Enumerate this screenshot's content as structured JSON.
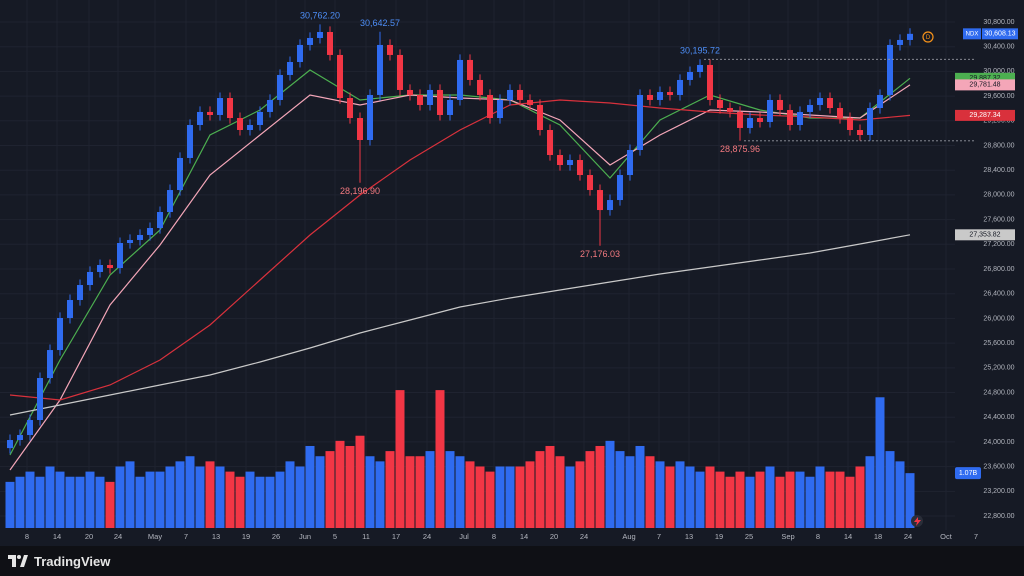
{
  "chart_data": {
    "type": "candlestick",
    "symbol": "NDX",
    "interval_badge": "D",
    "open": [
      23900,
      24031,
      24112,
      24355,
      25035,
      25488,
      26007,
      26298,
      26541,
      26752,
      26865,
      26816,
      27221,
      27270,
      27351,
      27464,
      27723,
      28079,
      28598,
      29132,
      29343,
      29294,
      29569,
      29245,
      29051,
      29132,
      29343,
      29537,
      29942,
      30152,
      30428,
      30541,
      30638,
      30266,
      29569,
      29245,
      28889,
      29618,
      30428,
      30266,
      29699,
      29618,
      29456,
      29699,
      29294,
      29537,
      30185,
      29861,
      29618,
      29245,
      29537,
      29699,
      29537,
      29456,
      29051,
      28646,
      28484,
      28565,
      28322,
      28079,
      27755,
      27917,
      28322,
      28727,
      29618,
      29537,
      29666,
      29618,
      29861,
      29990,
      30104,
      29537,
      29407,
      29343,
      29084,
      29245,
      29181,
      29537,
      29375,
      29132,
      29343,
      29456,
      29569,
      29407,
      29245,
      29051,
      28970,
      29407,
      29618,
      30428,
      30509
    ],
    "high": [
      24121,
      24202,
      24445,
      25125,
      25578,
      26097,
      26388,
      26631,
      26842,
      26955,
      26955,
      27311,
      27360,
      27441,
      27554,
      27813,
      28169,
      28688,
      29222,
      29433,
      29433,
      29659,
      29659,
      29335,
      29222,
      29433,
      29627,
      30032,
      30242,
      30518,
      30631,
      30762.2,
      30728,
      30356,
      29659,
      29335,
      29708,
      30642.57,
      30518,
      30356,
      29789,
      29708,
      29789,
      29789,
      29627,
      30275,
      30275,
      29951,
      29708,
      29627,
      29789,
      29789,
      29627,
      29546,
      29141,
      28736,
      28655,
      28655,
      28412,
      28169,
      28007,
      28412,
      28817,
      29708,
      29708,
      29756,
      29756,
      29951,
      30080,
      30195.72,
      30194,
      29627,
      29497,
      29433,
      29335,
      29335,
      29627,
      29627,
      29465,
      29433,
      29546,
      29659,
      29659,
      29497,
      29335,
      29141,
      29497,
      29708,
      30518,
      30599,
      30698
    ],
    "low": [
      23810,
      23941,
      24022,
      24265,
      24945,
      25398,
      25917,
      26208,
      26451,
      26662,
      26726,
      26726,
      27131,
      27180,
      27261,
      27374,
      27633,
      27989,
      28508,
      29042,
      29204,
      29204,
      29155,
      28961,
      28961,
      29042,
      29253,
      29447,
      29852,
      30062,
      30338,
      30451,
      30176,
      29479,
      29155,
      28196.9,
      28799,
      29528,
      30176,
      29609,
      29528,
      29366,
      29366,
      29204,
      29204,
      29447,
      29771,
      29528,
      29155,
      29155,
      29447,
      29447,
      29366,
      28961,
      28556,
      28394,
      28394,
      28232,
      27989,
      27176.03,
      27665,
      27827,
      28232,
      28637,
      29447,
      29447,
      29528,
      29528,
      29771,
      29900,
      29447,
      29317,
      29253,
      28875.96,
      28994,
      29091,
      29091,
      29285,
      29042,
      29042,
      29253,
      29366,
      29317,
      29155,
      28961,
      28880,
      28880,
      29317,
      29528,
      30338,
      30419
    ],
    "close": [
      24031,
      24112,
      24355,
      25035,
      25488,
      26007,
      26298,
      26541,
      26752,
      26865,
      26816,
      27221,
      27270,
      27351,
      27464,
      27723,
      28079,
      28598,
      29132,
      29343,
      29294,
      29569,
      29245,
      29051,
      29132,
      29343,
      29537,
      29942,
      30152,
      30428,
      30541,
      30638,
      30266,
      29569,
      29245,
      28889,
      29618,
      30428,
      30266,
      29699,
      29618,
      29456,
      29699,
      29294,
      29537,
      30185,
      29861,
      29618,
      29245,
      29537,
      29699,
      29537,
      29456,
      29051,
      28646,
      28484,
      28565,
      28322,
      28079,
      27755,
      27917,
      28322,
      28727,
      29618,
      29537,
      29666,
      29618,
      29861,
      29990,
      30104,
      29537,
      29407,
      29343,
      29084,
      29245,
      29181,
      29537,
      29375,
      29132,
      29343,
      29456,
      29569,
      29407,
      29245,
      29051,
      28970,
      29407,
      29618,
      30428,
      30509,
      30608.13
    ],
    "last_price_label": "30,608.13",
    "volume": [
      0.9,
      1.0,
      1.1,
      1.0,
      1.2,
      1.1,
      1.0,
      1.0,
      1.1,
      1.0,
      0.9,
      1.2,
      1.3,
      1.0,
      1.1,
      1.1,
      1.2,
      1.3,
      1.4,
      1.2,
      1.3,
      1.2,
      1.1,
      1.0,
      1.1,
      1.0,
      1.0,
      1.1,
      1.3,
      1.2,
      1.6,
      1.4,
      1.5,
      1.7,
      1.6,
      1.8,
      1.4,
      1.3,
      1.5,
      2.69,
      1.4,
      1.4,
      1.5,
      2.69,
      1.5,
      1.4,
      1.3,
      1.2,
      1.1,
      1.2,
      1.2,
      1.2,
      1.3,
      1.5,
      1.6,
      1.4,
      1.2,
      1.3,
      1.5,
      1.6,
      1.7,
      1.5,
      1.4,
      1.6,
      1.4,
      1.3,
      1.2,
      1.3,
      1.2,
      1.1,
      1.2,
      1.1,
      1.0,
      1.1,
      1.0,
      1.1,
      1.2,
      1.0,
      1.1,
      1.1,
      1.0,
      1.2,
      1.1,
      1.1,
      1.0,
      1.2,
      1.4,
      2.55,
      1.5,
      1.3,
      1.07
    ],
    "volume_label": "1.07B",
    "volume_ylim": [
      0,
      10.3
    ],
    "up_color": "#2f6bf0",
    "down_color": "#f23645",
    "series": [
      {
        "color": "#4caf50",
        "x": [
          0,
          5,
          10,
          15,
          20,
          25,
          30,
          35,
          40,
          45,
          50,
          55,
          60,
          65,
          70,
          75,
          80,
          85,
          90
        ],
        "values": [
          23788,
          25326,
          26703,
          27432,
          28970,
          29375,
          30023,
          29537,
          29618,
          29618,
          29537,
          29132,
          28274,
          29213,
          29618,
          29375,
          29245,
          29245,
          29887.32
        ],
        "value_labels": [
          null,
          null,
          null,
          null,
          null,
          null,
          null,
          null,
          null,
          null,
          null,
          null,
          null,
          null,
          null,
          null,
          null,
          null,
          "29,887.32"
        ]
      },
      {
        "color": "#f4a6b8",
        "x": [
          0,
          5,
          10,
          15,
          20,
          25,
          30,
          35,
          40,
          45,
          50,
          55,
          60,
          65,
          70,
          75,
          80,
          85,
          90
        ],
        "values": [
          23545,
          24679,
          26217,
          27189,
          28322,
          28970,
          29618,
          29456,
          29618,
          29569,
          29537,
          29213,
          28484,
          28970,
          29375,
          29343,
          29294,
          29245,
          29781.48
        ],
        "value_labels": [
          null,
          null,
          null,
          null,
          null,
          null,
          null,
          null,
          null,
          null,
          null,
          null,
          null,
          null,
          null,
          null,
          null,
          null,
          "29,781.48"
        ]
      },
      {
        "color": "#d9313c",
        "x": [
          0,
          5,
          10,
          15,
          20,
          25,
          30,
          35,
          40,
          45,
          50,
          55,
          60,
          65,
          70,
          75,
          80,
          85,
          90
        ],
        "values": [
          24760,
          24679,
          24922,
          25326,
          25893,
          26622,
          27351,
          27998,
          28565,
          29051,
          29456,
          29537,
          29488,
          29407,
          29343,
          29294,
          29262,
          29213,
          29287.34
        ],
        "value_labels": [
          null,
          null,
          null,
          null,
          null,
          null,
          null,
          null,
          null,
          null,
          null,
          null,
          null,
          null,
          null,
          null,
          null,
          null,
          "29,287.34"
        ]
      },
      {
        "color": "#c9c9c9",
        "x": [
          0,
          5,
          10,
          15,
          20,
          25,
          30,
          35,
          40,
          45,
          50,
          55,
          60,
          65,
          70,
          75,
          80,
          85,
          90
        ],
        "values": [
          24436,
          24598,
          24760,
          24922,
          25084,
          25294,
          25521,
          25764,
          25974,
          26185,
          26331,
          26460,
          26590,
          26719,
          26832,
          26946,
          27059,
          27205,
          27353.82
        ],
        "value_labels": [
          null,
          null,
          null,
          null,
          null,
          null,
          null,
          null,
          null,
          null,
          null,
          null,
          null,
          null,
          null,
          null,
          null,
          null,
          "27,353.82"
        ]
      }
    ],
    "annotations": [
      {
        "text": "30,762.20",
        "candle": 31,
        "side": "high",
        "dashed": false
      },
      {
        "text": "30,642.57",
        "candle": 37,
        "side": "high",
        "dashed": false
      },
      {
        "text": "30,195.72",
        "candle": 69,
        "side": "high",
        "dashed": true
      },
      {
        "text": "28,196.90",
        "candle": 35,
        "side": "low",
        "dashed": false
      },
      {
        "text": "27,176.03",
        "candle": 59,
        "side": "low",
        "dashed": false
      },
      {
        "text": "28,875.96",
        "candle": 73,
        "side": "low",
        "dashed": true
      }
    ],
    "xlim": [
      -1,
      101.4
    ],
    "xticks": [
      {
        "value": 1.7,
        "label": "8"
      },
      {
        "value": 4.7,
        "label": "14"
      },
      {
        "value": 7.9,
        "label": "20"
      },
      {
        "value": 10.8,
        "label": "24"
      },
      {
        "value": 14.5,
        "label": "May"
      },
      {
        "value": 17.6,
        "label": "7"
      },
      {
        "value": 20.6,
        "label": "13"
      },
      {
        "value": 23.6,
        "label": "19"
      },
      {
        "value": 26.6,
        "label": "26"
      },
      {
        "value": 29.5,
        "label": "Jun"
      },
      {
        "value": 32.5,
        "label": "5"
      },
      {
        "value": 35.6,
        "label": "11"
      },
      {
        "value": 38.6,
        "label": "17"
      },
      {
        "value": 41.7,
        "label": "24"
      },
      {
        "value": 45.4,
        "label": "Jul"
      },
      {
        "value": 48.4,
        "label": "8"
      },
      {
        "value": 51.4,
        "label": "14"
      },
      {
        "value": 54.4,
        "label": "20"
      },
      {
        "value": 57.4,
        "label": "24"
      },
      {
        "value": 61.9,
        "label": "Aug"
      },
      {
        "value": 64.9,
        "label": "7"
      },
      {
        "value": 67.9,
        "label": "13"
      },
      {
        "value": 70.9,
        "label": "19"
      },
      {
        "value": 73.9,
        "label": "25"
      },
      {
        "value": 77.8,
        "label": "Sep"
      },
      {
        "value": 80.8,
        "label": "8"
      },
      {
        "value": 83.8,
        "label": "14"
      },
      {
        "value": 86.8,
        "label": "18"
      },
      {
        "value": 89.8,
        "label": "24"
      },
      {
        "value": 93.6,
        "label": "Oct"
      },
      {
        "value": 96.6,
        "label": "7"
      }
    ],
    "ylim": [
      22412,
      31156
    ],
    "yticks": [
      {
        "value": 30800,
        "label": "30,800.00"
      },
      {
        "value": 30400,
        "label": "30,400.00"
      },
      {
        "value": 30000,
        "label": "30,000.00"
      },
      {
        "value": 29600,
        "label": "29,600.00"
      },
      {
        "value": 29200,
        "label": "29,200.00"
      },
      {
        "value": 28800,
        "label": "28,800.00"
      },
      {
        "value": 28400,
        "label": "28,400.00"
      },
      {
        "value": 28000,
        "label": "28,000.00"
      },
      {
        "value": 27600,
        "label": "27,600.00"
      },
      {
        "value": 27200,
        "label": "27,200.00"
      },
      {
        "value": 26800,
        "label": "26,800.00"
      },
      {
        "value": 26400,
        "label": "26,400.00"
      },
      {
        "value": 26000,
        "label": "26,000.00"
      },
      {
        "value": 25600,
        "label": "25,600.00"
      },
      {
        "value": 25200,
        "label": "25,200.00"
      },
      {
        "value": 24800,
        "label": "24,800.00"
      },
      {
        "value": 24400,
        "label": "24,400.00"
      },
      {
        "value": 24000,
        "label": "24,000.00"
      },
      {
        "value": 23600,
        "label": "23,600.00"
      },
      {
        "value": 23200,
        "label": "23,200.00"
      },
      {
        "value": 22800,
        "label": "22,800.00"
      }
    ],
    "grid": true,
    "brand": "TradingView"
  }
}
